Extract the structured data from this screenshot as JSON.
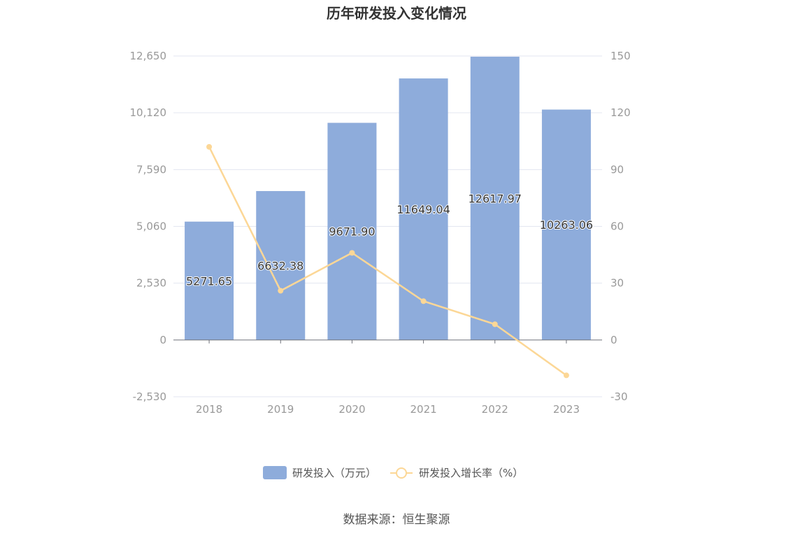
{
  "title": "历年研发投入变化情况",
  "source": "数据来源：恒生聚源",
  "colors": {
    "bar": "#8eacdb",
    "line": "#fcd796",
    "grid": "#e3e6f0",
    "axis": "#6e7079"
  },
  "chart_data": {
    "type": "bar+line",
    "title": "历年研发投入变化情况",
    "categories": [
      "2018",
      "2019",
      "2020",
      "2021",
      "2022",
      "2023"
    ],
    "series": [
      {
        "name": "研发投入（万元）",
        "type": "bar",
        "axis": "left",
        "values": [
          5271.65,
          6632.38,
          9671.9,
          11649.04,
          12617.97,
          10263.06
        ],
        "labels": [
          "5271.65",
          "6632.38",
          "9671.90",
          "11649.04",
          "12617.97",
          "10263.06"
        ]
      },
      {
        "name": "研发投入增长率（%）",
        "type": "line",
        "axis": "right",
        "values": [
          102,
          26,
          46,
          20.5,
          8.3,
          -18.7
        ]
      }
    ],
    "y_left": {
      "min": -2530,
      "max": 12650,
      "ticks": [
        -2530,
        0,
        2530,
        5060,
        7590,
        10120,
        12650
      ],
      "tick_labels": [
        "-2,530",
        "0",
        "2,530",
        "5,060",
        "7,590",
        "10,120",
        "12,650"
      ]
    },
    "y_right": {
      "min": -30,
      "max": 150,
      "ticks": [
        -30,
        0,
        30,
        60,
        90,
        120,
        150
      ],
      "tick_labels": [
        "-30",
        "0",
        "30",
        "60",
        "90",
        "120",
        "150"
      ]
    },
    "grid": true,
    "legend_position": "bottom"
  }
}
